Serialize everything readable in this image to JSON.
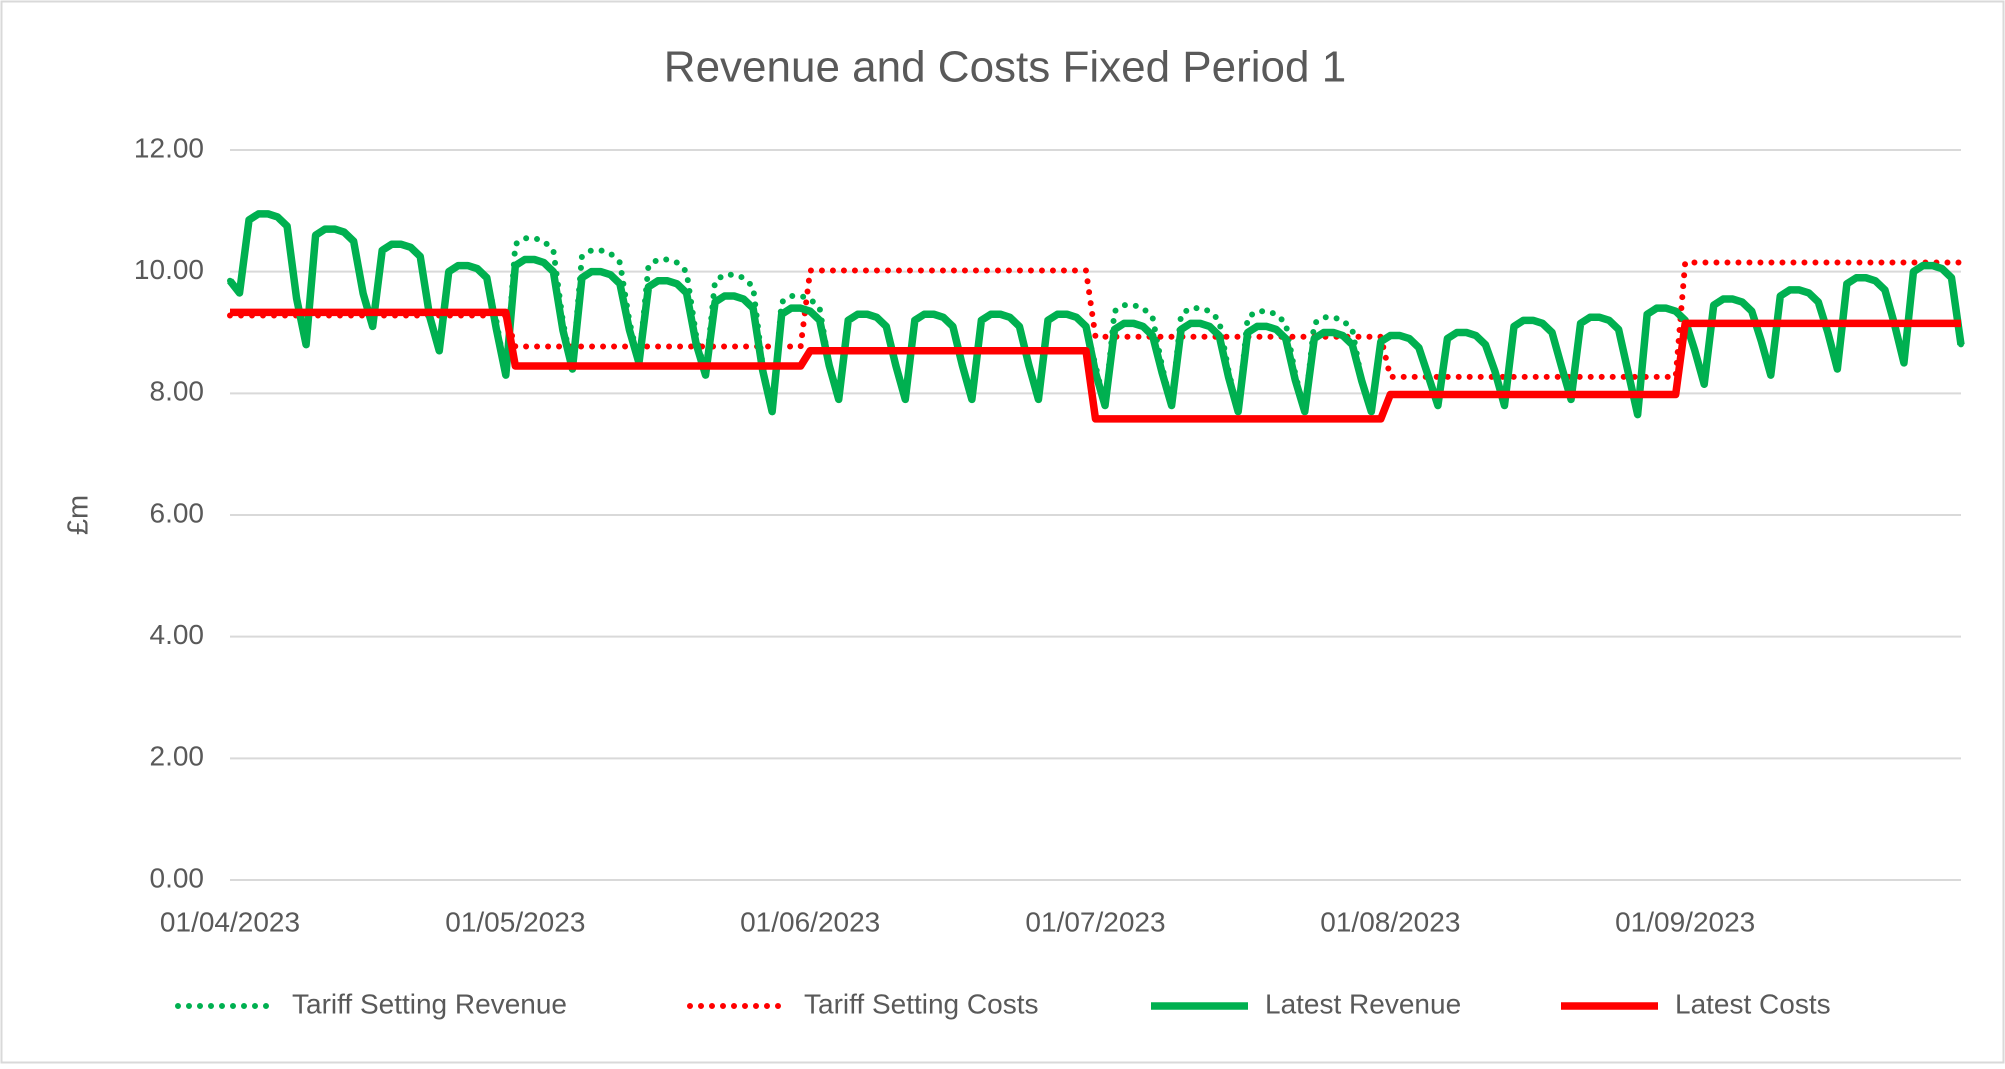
{
  "chart_data": {
    "type": "line",
    "title": "Revenue and Costs Fixed Period 1",
    "y_label": "£m",
    "categories": [
      "01/04/2023",
      null,
      null,
      null,
      null,
      null,
      null,
      null,
      null,
      null,
      null,
      null,
      null,
      null,
      null,
      null,
      null,
      null,
      null,
      null,
      null,
      null,
      null,
      null,
      null,
      null,
      null,
      null,
      null,
      null,
      "01/05/2023",
      null,
      null,
      null,
      null,
      null,
      null,
      null,
      null,
      null,
      null,
      null,
      null,
      null,
      null,
      null,
      null,
      null,
      null,
      null,
      null,
      null,
      null,
      null,
      null,
      null,
      null,
      null,
      null,
      null,
      null,
      "01/06/2023",
      null,
      null,
      null,
      null,
      null,
      null,
      null,
      null,
      null,
      null,
      null,
      null,
      null,
      null,
      null,
      null,
      null,
      null,
      null,
      null,
      null,
      null,
      null,
      null,
      null,
      null,
      null,
      null,
      null,
      "01/07/2023",
      null,
      null,
      null,
      null,
      null,
      null,
      null,
      null,
      null,
      null,
      null,
      null,
      null,
      null,
      null,
      null,
      null,
      null,
      null,
      null,
      null,
      null,
      null,
      null,
      null,
      null,
      null,
      null,
      null,
      null,
      "01/08/2023",
      null,
      null,
      null,
      null,
      null,
      null,
      null,
      null,
      null,
      null,
      null,
      null,
      null,
      null,
      null,
      null,
      null,
      null,
      null,
      null,
      null,
      null,
      null,
      null,
      null,
      null,
      null,
      null,
      null,
      null,
      "01/09/2023",
      null,
      null,
      null,
      null,
      null,
      null,
      null,
      null,
      null,
      null,
      null,
      null,
      null,
      null,
      null,
      null,
      null,
      null,
      null,
      null,
      null,
      null,
      null,
      null,
      null,
      null,
      null,
      null,
      null
    ],
    "series": [
      {
        "name": "Tariff Setting Revenue",
        "color": "#00b050",
        "line_style": "dotted",
        "values": [
          9.85,
          9.65,
          10.85,
          10.95,
          10.95,
          10.9,
          10.75,
          9.56,
          8.8,
          10.6,
          10.7,
          10.7,
          10.65,
          10.5,
          9.64,
          9.1,
          10.35,
          10.45,
          10.45,
          10.4,
          10.25,
          9.26,
          8.7,
          10.0,
          10.1,
          10.1,
          10.05,
          9.9,
          9.2,
          8.3,
          10.45,
          10.55,
          10.55,
          10.5,
          10.35,
          9.18,
          8.4,
          10.25,
          10.35,
          10.35,
          10.3,
          10.15,
          9.18,
          8.5,
          10.1,
          10.2,
          10.2,
          10.15,
          10.0,
          8.96,
          8.3,
          9.85,
          9.95,
          9.95,
          9.9,
          9.75,
          8.46,
          7.7,
          9.5,
          9.6,
          9.6,
          9.55,
          9.4,
          8.46,
          7.9,
          9.2,
          9.3,
          9.3,
          9.25,
          9.1,
          8.46,
          7.9,
          9.2,
          9.3,
          9.3,
          9.25,
          9.1,
          8.46,
          7.9,
          9.2,
          9.3,
          9.3,
          9.25,
          9.1,
          8.46,
          7.9,
          9.2,
          9.3,
          9.3,
          9.25,
          9.1,
          8.46,
          7.8,
          9.35,
          9.45,
          9.45,
          9.4,
          9.25,
          8.44,
          7.8,
          9.3,
          9.4,
          9.4,
          9.35,
          9.2,
          8.36,
          7.7,
          9.25,
          9.35,
          9.35,
          9.3,
          9.15,
          8.32,
          7.7,
          9.15,
          9.25,
          9.25,
          9.2,
          9.05,
          8.2,
          7.7,
          8.85,
          8.95,
          8.95,
          8.9,
          8.75,
          8.28,
          7.8,
          8.9,
          9.0,
          9.0,
          8.95,
          8.8,
          8.36,
          7.8,
          9.1,
          9.2,
          9.2,
          9.15,
          9.0,
          8.44,
          7.9,
          9.15,
          9.25,
          9.25,
          9.2,
          9.05,
          8.35,
          7.65,
          9.3,
          9.4,
          9.4,
          9.35,
          9.2,
          8.71,
          8.15,
          9.45,
          9.55,
          9.55,
          9.5,
          9.35,
          8.86,
          8.3,
          9.6,
          9.7,
          9.7,
          9.65,
          9.5,
          9.0,
          8.4,
          9.8,
          9.9,
          9.9,
          9.85,
          9.7,
          9.14,
          8.5,
          10.0,
          10.1,
          10.1,
          10.05,
          9.9,
          8.8
        ]
      },
      {
        "name": "Tariff Setting Costs",
        "color": "#ff0000",
        "line_style": "dotted",
        "values": [
          9.28,
          9.28,
          9.28,
          9.28,
          9.28,
          9.28,
          9.28,
          9.28,
          9.28,
          9.28,
          9.28,
          9.28,
          9.28,
          9.28,
          9.28,
          9.28,
          9.28,
          9.28,
          9.28,
          9.28,
          9.28,
          9.28,
          9.28,
          9.28,
          9.28,
          9.28,
          9.28,
          9.28,
          9.28,
          9.28,
          8.77,
          8.77,
          8.77,
          8.77,
          8.77,
          8.77,
          8.77,
          8.77,
          8.77,
          8.77,
          8.77,
          8.77,
          8.77,
          8.77,
          8.77,
          8.77,
          8.77,
          8.77,
          8.77,
          8.77,
          8.77,
          8.77,
          8.77,
          8.77,
          8.77,
          8.77,
          8.77,
          8.77,
          8.77,
          8.77,
          8.77,
          10.02,
          10.02,
          10.02,
          10.02,
          10.02,
          10.02,
          10.02,
          10.02,
          10.02,
          10.02,
          10.02,
          10.02,
          10.02,
          10.02,
          10.02,
          10.02,
          10.02,
          10.02,
          10.02,
          10.02,
          10.02,
          10.02,
          10.02,
          10.02,
          10.02,
          10.02,
          10.02,
          10.02,
          10.02,
          10.02,
          8.93,
          8.93,
          8.93,
          8.93,
          8.93,
          8.93,
          8.93,
          8.93,
          8.93,
          8.93,
          8.93,
          8.93,
          8.93,
          8.93,
          8.93,
          8.93,
          8.93,
          8.93,
          8.93,
          8.93,
          8.93,
          8.93,
          8.93,
          8.93,
          8.93,
          8.93,
          8.93,
          8.93,
          8.93,
          8.93,
          8.93,
          8.27,
          8.27,
          8.27,
          8.27,
          8.27,
          8.27,
          8.27,
          8.27,
          8.27,
          8.27,
          8.27,
          8.27,
          8.27,
          8.27,
          8.27,
          8.27,
          8.27,
          8.27,
          8.27,
          8.27,
          8.27,
          8.27,
          8.27,
          8.27,
          8.27,
          8.27,
          8.27,
          8.27,
          8.27,
          8.27,
          8.27,
          10.15,
          10.15,
          10.15,
          10.15,
          10.15,
          10.15,
          10.15,
          10.15,
          10.15,
          10.15,
          10.15,
          10.15,
          10.15,
          10.15,
          10.15,
          10.15,
          10.15,
          10.15,
          10.15,
          10.15,
          10.15,
          10.15,
          10.15,
          10.15,
          10.15,
          10.15,
          10.15,
          10.15,
          10.15,
          10.15
        ]
      },
      {
        "name": "Latest Revenue",
        "color": "#00b050",
        "line_style": "solid",
        "values": [
          9.85,
          9.65,
          10.85,
          10.95,
          10.95,
          10.9,
          10.75,
          9.56,
          8.8,
          10.6,
          10.7,
          10.7,
          10.65,
          10.5,
          9.64,
          9.1,
          10.35,
          10.45,
          10.45,
          10.4,
          10.25,
          9.26,
          8.7,
          10.0,
          10.1,
          10.1,
          10.05,
          9.9,
          9.06,
          8.3,
          10.1,
          10.2,
          10.2,
          10.15,
          10.0,
          9.04,
          8.4,
          9.9,
          10.0,
          10.0,
          9.95,
          9.8,
          9.04,
          8.5,
          9.75,
          9.85,
          9.85,
          9.8,
          9.65,
          8.82,
          8.3,
          9.5,
          9.6,
          9.6,
          9.55,
          9.4,
          8.38,
          7.7,
          9.3,
          9.4,
          9.4,
          9.35,
          9.2,
          8.46,
          7.9,
          9.2,
          9.3,
          9.3,
          9.25,
          9.1,
          8.46,
          7.9,
          9.2,
          9.3,
          9.3,
          9.25,
          9.1,
          8.46,
          7.9,
          9.2,
          9.3,
          9.3,
          9.25,
          9.1,
          8.46,
          7.9,
          9.2,
          9.3,
          9.3,
          9.25,
          9.1,
          8.34,
          7.8,
          9.05,
          9.15,
          9.15,
          9.1,
          8.95,
          8.34,
          7.8,
          9.05,
          9.15,
          9.15,
          9.1,
          8.95,
          8.26,
          7.7,
          9.0,
          9.1,
          9.1,
          9.05,
          8.9,
          8.22,
          7.7,
          8.9,
          9.0,
          9.0,
          8.95,
          8.8,
          8.2,
          7.7,
          8.85,
          8.95,
          8.95,
          8.9,
          8.75,
          8.28,
          7.8,
          8.9,
          9.0,
          9.0,
          8.95,
          8.8,
          8.36,
          7.8,
          9.1,
          9.2,
          9.2,
          9.15,
          9.0,
          8.44,
          7.9,
          9.15,
          9.25,
          9.25,
          9.2,
          9.05,
          8.35,
          7.65,
          9.3,
          9.4,
          9.4,
          9.35,
          9.2,
          8.71,
          8.15,
          9.45,
          9.55,
          9.55,
          9.5,
          9.35,
          8.86,
          8.3,
          9.6,
          9.7,
          9.7,
          9.65,
          9.5,
          9.0,
          8.4,
          9.8,
          9.9,
          9.9,
          9.85,
          9.7,
          9.14,
          8.5,
          10.0,
          10.1,
          10.1,
          10.05,
          9.9,
          8.8
        ]
      },
      {
        "name": "Latest Costs",
        "color": "#ff0000",
        "line_style": "solid",
        "values": [
          9.33,
          9.33,
          9.33,
          9.33,
          9.33,
          9.33,
          9.33,
          9.33,
          9.33,
          9.33,
          9.33,
          9.33,
          9.33,
          9.33,
          9.33,
          9.33,
          9.33,
          9.33,
          9.33,
          9.33,
          9.33,
          9.33,
          9.33,
          9.33,
          9.33,
          9.33,
          9.33,
          9.33,
          9.33,
          9.33,
          8.45,
          8.45,
          8.45,
          8.45,
          8.45,
          8.45,
          8.45,
          8.45,
          8.45,
          8.45,
          8.45,
          8.45,
          8.45,
          8.45,
          8.45,
          8.45,
          8.45,
          8.45,
          8.45,
          8.45,
          8.45,
          8.45,
          8.45,
          8.45,
          8.45,
          8.45,
          8.45,
          8.45,
          8.45,
          8.45,
          8.45,
          8.7,
          8.7,
          8.7,
          8.7,
          8.7,
          8.7,
          8.7,
          8.7,
          8.7,
          8.7,
          8.7,
          8.7,
          8.7,
          8.7,
          8.7,
          8.7,
          8.7,
          8.7,
          8.7,
          8.7,
          8.7,
          8.7,
          8.7,
          8.7,
          8.7,
          8.7,
          8.7,
          8.7,
          8.7,
          8.7,
          7.58,
          7.58,
          7.58,
          7.58,
          7.58,
          7.58,
          7.58,
          7.58,
          7.58,
          7.58,
          7.58,
          7.58,
          7.58,
          7.58,
          7.58,
          7.58,
          7.58,
          7.58,
          7.58,
          7.58,
          7.58,
          7.58,
          7.58,
          7.58,
          7.58,
          7.58,
          7.58,
          7.58,
          7.58,
          7.58,
          7.58,
          7.98,
          7.98,
          7.98,
          7.98,
          7.98,
          7.98,
          7.98,
          7.98,
          7.98,
          7.98,
          7.98,
          7.98,
          7.98,
          7.98,
          7.98,
          7.98,
          7.98,
          7.98,
          7.98,
          7.98,
          7.98,
          7.98,
          7.98,
          7.98,
          7.98,
          7.98,
          7.98,
          7.98,
          7.98,
          7.98,
          7.98,
          9.15,
          9.15,
          9.15,
          9.15,
          9.15,
          9.15,
          9.15,
          9.15,
          9.15,
          9.15,
          9.15,
          9.15,
          9.15,
          9.15,
          9.15,
          9.15,
          9.15,
          9.15,
          9.15,
          9.15,
          9.15,
          9.15,
          9.15,
          9.15,
          9.15,
          9.15,
          9.15,
          9.15,
          9.15,
          9.15
        ]
      }
    ],
    "ylim": [
      0,
      12
    ],
    "yticks": [
      {
        "value": 0,
        "label": "0.00"
      },
      {
        "value": 2,
        "label": "2.00"
      },
      {
        "value": 4,
        "label": "4.00"
      },
      {
        "value": 6,
        "label": "6.00"
      },
      {
        "value": 8,
        "label": "8.00"
      },
      {
        "value": 10,
        "label": "10.00"
      },
      {
        "value": 12,
        "label": "12.00"
      }
    ],
    "grid": true,
    "legend": "bottom"
  }
}
